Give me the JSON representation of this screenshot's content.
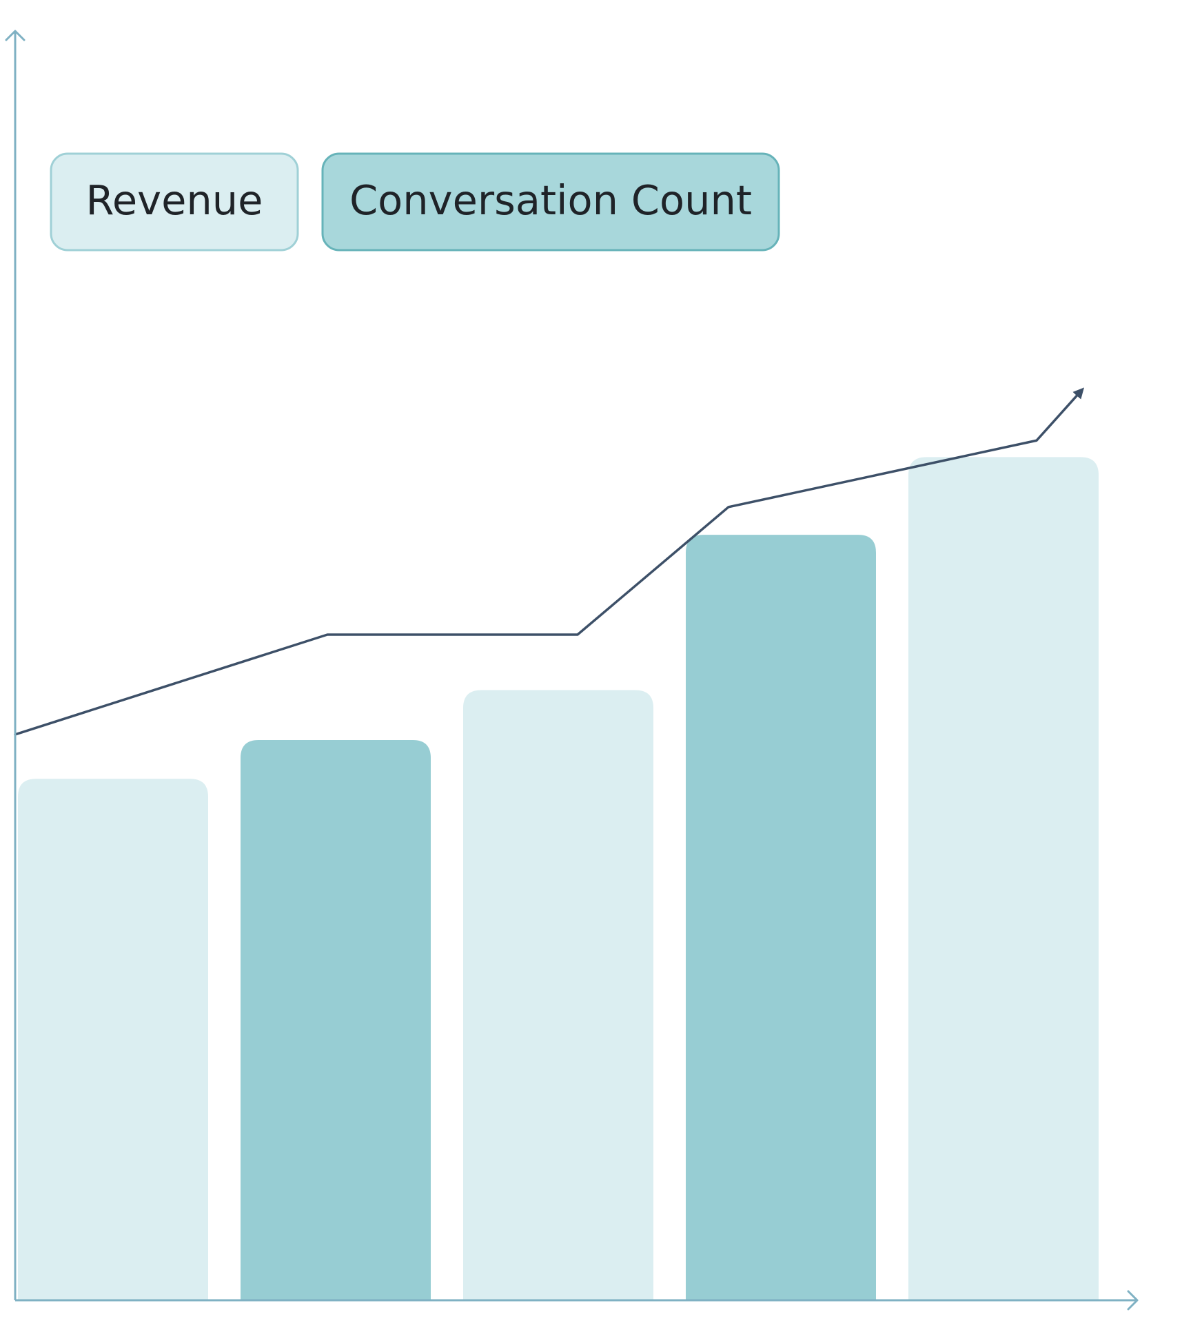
{
  "chart_data": {
    "type": "bar",
    "title": "",
    "xlabel": "",
    "ylabel": "",
    "categories": [
      "",
      "",
      "",
      "",
      ""
    ],
    "ylim": [
      0,
      100
    ],
    "legend": {
      "placement": "top-left",
      "items": [
        {
          "label": "Revenue",
          "color": "#dbeef1"
        },
        {
          "label": "Conversation Count",
          "color": "#a8d7db"
        }
      ]
    },
    "series": [
      {
        "name": "Revenue",
        "type": "bar",
        "values": [
          47,
          50.5,
          55,
          69,
          76
        ],
        "colors": [
          "#dbeef1",
          "#97cdd3",
          "#dbeef1",
          "#97cdd3",
          "#dbeef1"
        ]
      },
      {
        "name": "Conversation Count",
        "type": "line",
        "values": [
          51,
          60,
          60,
          71.5,
          77.5
        ],
        "end_arrow_value": 82,
        "color": "#3d5068"
      }
    ],
    "axis_color": "#7fb1c3",
    "grid": false
  }
}
